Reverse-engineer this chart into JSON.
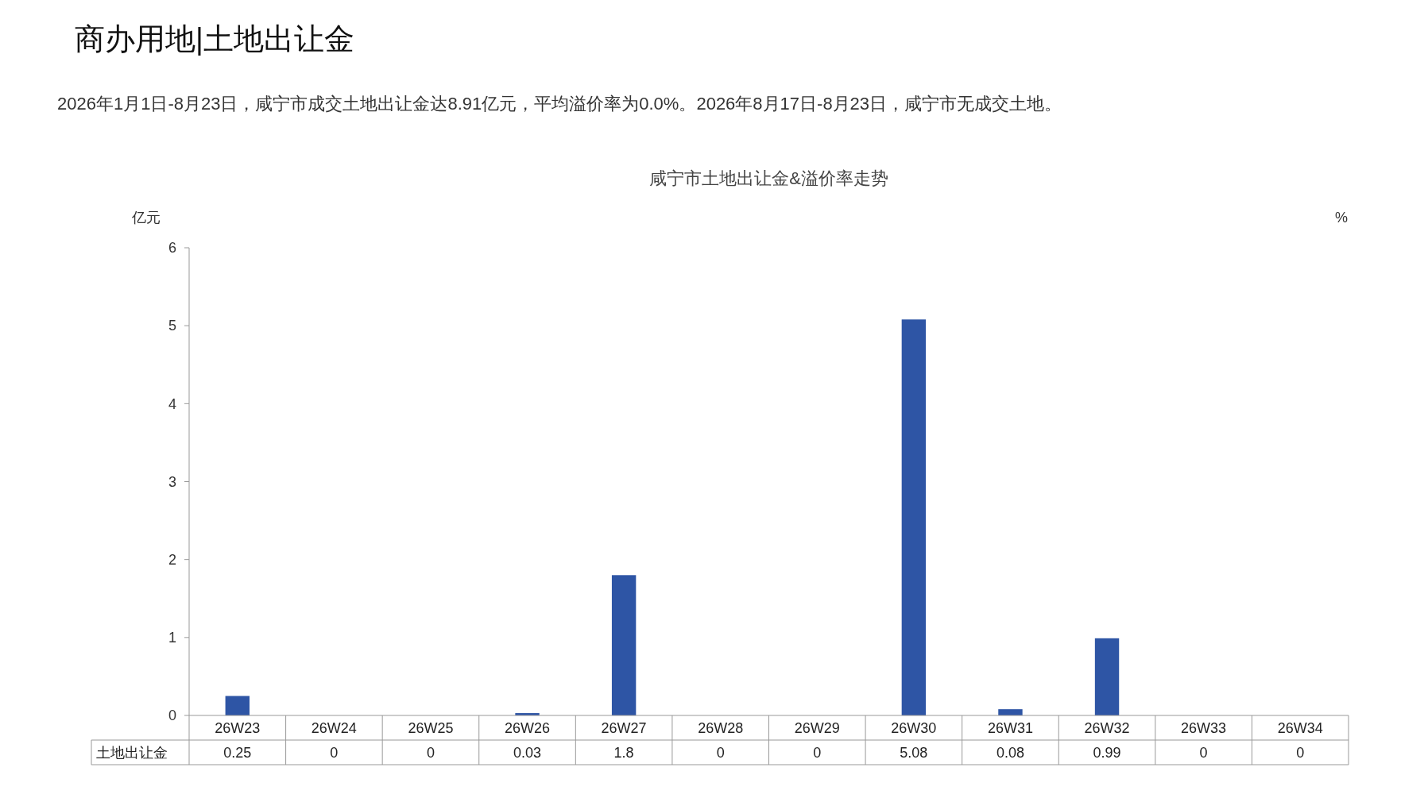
{
  "chart_data": {
    "type": "bar",
    "title": "咸宁市土地出让金&溢价率走势",
    "subtitle": "商办用地|土地出让金",
    "annotations": [
      "2026年1月1日-8月23日，咸宁市成交土地出让金达8.91亿元，平均溢价率为0.0%。2026年8月17日-8月23日，咸宁市无成交土地。"
    ],
    "ylabel": "亿元",
    "y2label": "%",
    "categories": [
      "26W23",
      "26W24",
      "26W25",
      "26W26",
      "26W27",
      "26W28",
      "26W29",
      "26W30",
      "26W31",
      "26W32",
      "26W33",
      "26W34"
    ],
    "series": [
      {
        "name": "土地出让金",
        "color": "#2e55a5",
        "values": [
          0.25,
          0,
          0,
          0.03,
          1.8,
          0,
          0,
          5.08,
          0.08,
          0.99,
          0,
          0
        ]
      }
    ],
    "ylim": [
      0,
      6
    ],
    "yticks": [
      0,
      1,
      2,
      3,
      4,
      5,
      6
    ],
    "data_labels": true,
    "grid": false
  }
}
